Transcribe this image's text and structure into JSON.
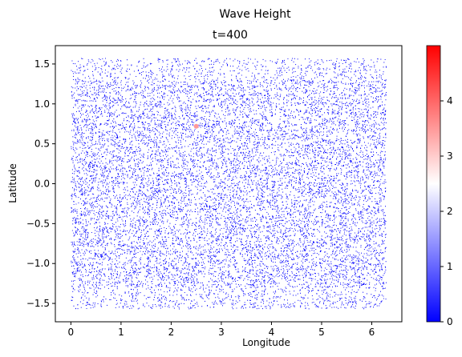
{
  "figure": {
    "suptitle": "Wave Height"
  },
  "chart_data": {
    "type": "scatter",
    "title": "t=400",
    "xlabel": "Longitude",
    "ylabel": "Latitude",
    "xlim": [
      -0.31,
      6.6
    ],
    "ylim": [
      -1.73,
      1.73
    ],
    "xticks": [
      0,
      1,
      2,
      3,
      4,
      5,
      6
    ],
    "yticks": [
      -1.5,
      -1.0,
      -0.5,
      0.0,
      0.5,
      1.0,
      1.5
    ],
    "xtick_labels": [
      "0",
      "1",
      "2",
      "3",
      "4",
      "5",
      "6"
    ],
    "ytick_labels": [
      "−1.5",
      "−1.0",
      "−0.5",
      "0.0",
      "0.5",
      "1.0",
      "1.5"
    ],
    "grid": false,
    "point_cloud": {
      "description_of_values": "dense cloud of points covering longitude 0 to 6.28, latitude -1.57 to 1.57, nearly all with wave height near 0",
      "x_range": [
        0,
        6.28
      ],
      "y_range": [
        -1.57,
        1.57
      ],
      "dominant_value": 0
    },
    "highlight_points": [
      {
        "x": 2.5,
        "y": 0.72,
        "value": 3.5
      }
    ],
    "colorbar": {
      "cmap": "bwr",
      "min": 0,
      "max": 5,
      "ticks": [
        0,
        1,
        2,
        3,
        4
      ],
      "tick_labels": [
        "0",
        "1",
        "2",
        "3",
        "4"
      ],
      "colors": {
        "low": "#0000ff",
        "mid": "#ffffff",
        "high": "#ff0000"
      }
    }
  }
}
